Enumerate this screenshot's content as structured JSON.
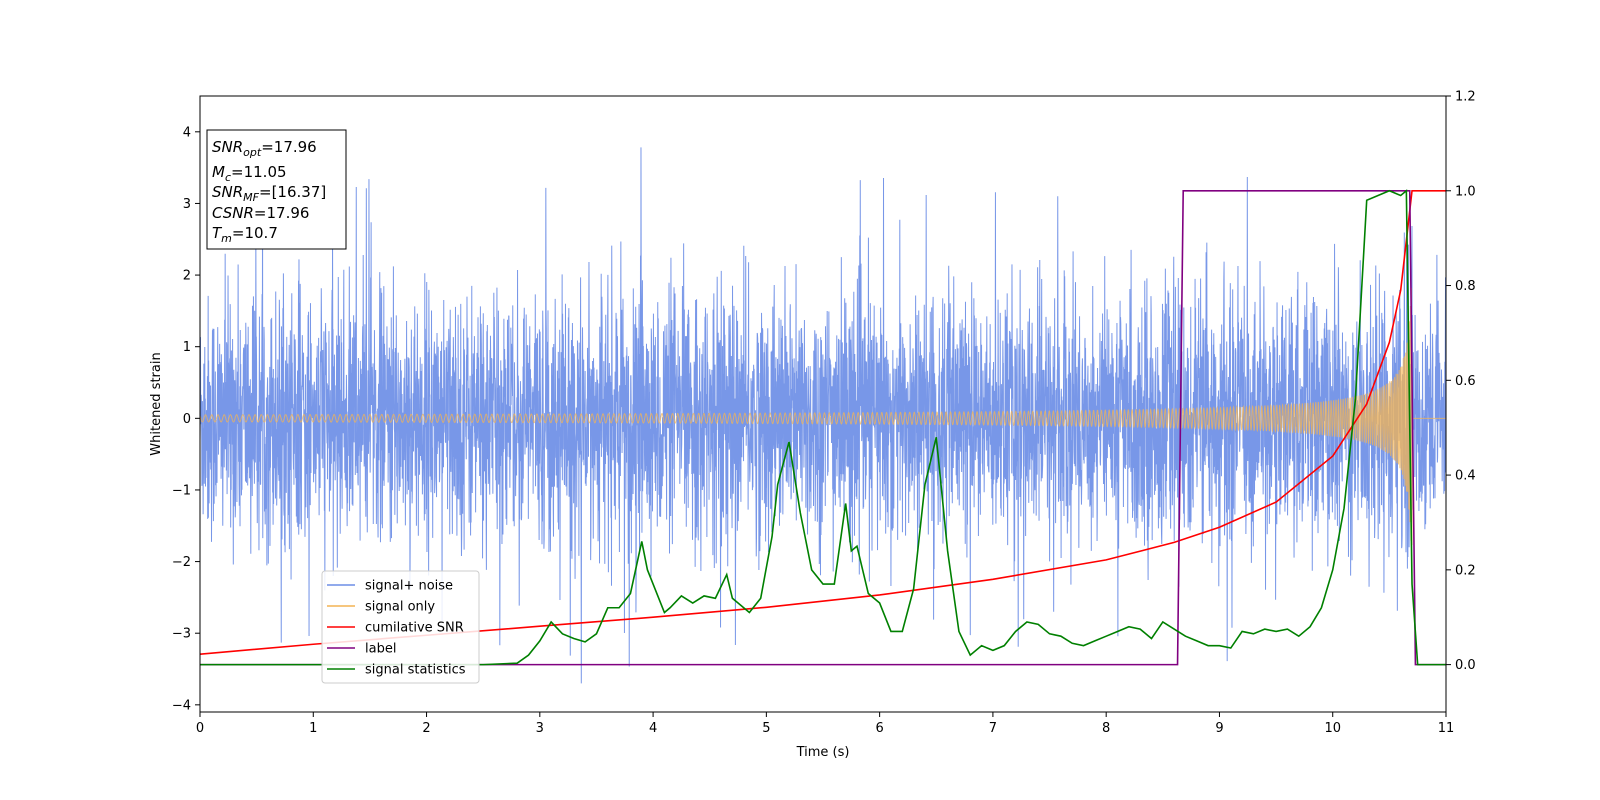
{
  "chart_data": {
    "type": "line",
    "title": "",
    "xlabel": "Time (s)",
    "ylabel_left": "Whitened strain",
    "ylabel_right": "",
    "xlim": [
      0,
      11
    ],
    "ylim_left": [
      -4.1,
      4.5
    ],
    "ylim_right": [
      -0.1,
      1.2
    ],
    "x_ticks": [
      "0",
      "1",
      "2",
      "3",
      "4",
      "5",
      "6",
      "7",
      "8",
      "9",
      "10",
      "11"
    ],
    "y_ticks_left": [
      "−4",
      "−3",
      "−2",
      "−1",
      "0",
      "1",
      "2",
      "3",
      "4"
    ],
    "y_ticks_left_values": [
      -4,
      -3,
      -2,
      -1,
      0,
      1,
      2,
      3,
      4
    ],
    "y_ticks_right": [
      "0.0",
      "0.2",
      "0.4",
      "0.6",
      "0.8",
      "1.0",
      "1.2"
    ],
    "y_ticks_right_values": [
      0.0,
      0.2,
      0.4,
      0.6,
      0.8,
      1.0,
      1.2
    ],
    "grid": false,
    "legend_placement": "lower-left",
    "info_box": [
      {
        "base": "SNR",
        "sub": "opt",
        "rest": "=17.96"
      },
      {
        "base": "M",
        "sub": "c",
        "rest": "=11.05"
      },
      {
        "base": "SNR",
        "sub": "MF",
        "rest": "=[16.37]"
      },
      {
        "base": "CSNR",
        "sub": "",
        "rest": "=17.96"
      },
      {
        "base": "T",
        "sub": "m",
        "rest": "=10.7"
      }
    ],
    "series": [
      {
        "name": "signal+ noise",
        "axis": "left",
        "color": "#6d8ee6",
        "description_values": {
          "noise_std": 0.85,
          "max_spike": 4.15,
          "min_spike": -3.7
        }
      },
      {
        "name": "signal only",
        "axis": "left",
        "color": "#f4b453",
        "chirp": {
          "start_amplitude": 0.05,
          "peak_amplitude": 2.6,
          "merger_time": 10.7
        }
      },
      {
        "name": "cumilative SNR",
        "axis": "right",
        "color": "#ff0000",
        "x": [
          0,
          1,
          2,
          3,
          4,
          5,
          6,
          7,
          8,
          8.6,
          9,
          9.5,
          10,
          10.3,
          10.5,
          10.6,
          10.7,
          11
        ],
        "y": [
          0.022,
          0.043,
          0.062,
          0.081,
          0.1,
          0.121,
          0.147,
          0.18,
          0.221,
          0.258,
          0.29,
          0.343,
          0.44,
          0.55,
          0.68,
          0.79,
          1.0,
          1.0
        ]
      },
      {
        "name": "label",
        "axis": "right",
        "color": "#800080",
        "x": [
          0,
          8.63,
          8.68,
          10.68,
          10.73,
          11
        ],
        "y": [
          0,
          0,
          1,
          1,
          0,
          0
        ]
      },
      {
        "name": "signal statistics",
        "axis": "right",
        "color": "#008000",
        "x": [
          0,
          2.5,
          2.8,
          2.9,
          3.0,
          3.1,
          3.2,
          3.3,
          3.4,
          3.5,
          3.6,
          3.7,
          3.8,
          3.9,
          3.95,
          4.0,
          4.1,
          4.15,
          4.25,
          4.35,
          4.45,
          4.55,
          4.65,
          4.7,
          4.75,
          4.85,
          4.95,
          5.05,
          5.1,
          5.2,
          5.3,
          5.4,
          5.5,
          5.6,
          5.7,
          5.75,
          5.8,
          5.9,
          6.0,
          6.1,
          6.2,
          6.3,
          6.4,
          6.5,
          6.6,
          6.7,
          6.8,
          6.9,
          7.0,
          7.1,
          7.2,
          7.3,
          7.4,
          7.5,
          7.6,
          7.7,
          7.8,
          7.9,
          8.0,
          8.1,
          8.2,
          8.3,
          8.4,
          8.5,
          8.6,
          8.7,
          8.8,
          8.9,
          9.0,
          9.1,
          9.2,
          9.3,
          9.4,
          9.5,
          9.6,
          9.7,
          9.8,
          9.9,
          10.0,
          10.1,
          10.2,
          10.3,
          10.4,
          10.5,
          10.6,
          10.65,
          10.7,
          10.75,
          11.0
        ],
        "y": [
          0,
          0,
          0.003,
          0.02,
          0.05,
          0.09,
          0.065,
          0.055,
          0.048,
          0.065,
          0.12,
          0.12,
          0.15,
          0.26,
          0.2,
          0.17,
          0.11,
          0.12,
          0.145,
          0.13,
          0.145,
          0.14,
          0.19,
          0.14,
          0.13,
          0.11,
          0.14,
          0.27,
          0.38,
          0.47,
          0.32,
          0.2,
          0.17,
          0.17,
          0.34,
          0.24,
          0.25,
          0.15,
          0.13,
          0.07,
          0.07,
          0.16,
          0.38,
          0.48,
          0.24,
          0.07,
          0.02,
          0.04,
          0.03,
          0.04,
          0.07,
          0.09,
          0.085,
          0.065,
          0.06,
          0.045,
          0.04,
          0.05,
          0.06,
          0.07,
          0.08,
          0.075,
          0.055,
          0.09,
          0.075,
          0.06,
          0.05,
          0.04,
          0.04,
          0.035,
          0.07,
          0.065,
          0.075,
          0.07,
          0.075,
          0.06,
          0.08,
          0.12,
          0.2,
          0.33,
          0.56,
          0.98,
          0.99,
          1.0,
          0.99,
          1.0,
          0.17,
          0.0,
          0.0
        ]
      }
    ]
  }
}
